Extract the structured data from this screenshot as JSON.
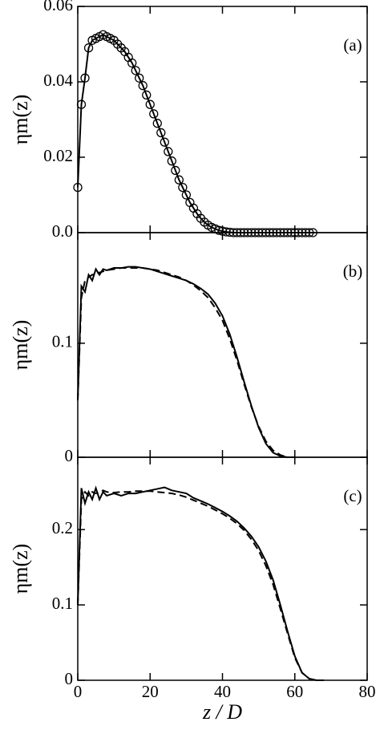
{
  "chart_data": [
    {
      "type": "line",
      "annotation": "(a)",
      "ylabel": "ηm(z)",
      "xlim": [
        0,
        80
      ],
      "ylim": [
        0,
        0.06
      ],
      "yticks": [
        {
          "value": 0,
          "label": "0.0"
        },
        0.02,
        0.04,
        0.06
      ],
      "x": [
        0,
        1,
        2,
        3,
        4,
        5,
        6,
        7,
        8,
        9,
        10,
        11,
        12,
        13,
        14,
        15,
        16,
        17,
        18,
        19,
        20,
        21,
        22,
        23,
        24,
        25,
        26,
        27,
        28,
        29,
        30,
        31,
        32,
        33,
        34,
        35,
        36,
        37,
        38,
        39,
        40,
        41,
        42,
        43,
        44,
        45,
        46,
        47,
        48,
        49,
        50,
        51,
        52,
        53,
        54,
        55,
        56,
        57,
        58,
        59,
        60,
        61,
        62,
        63,
        64,
        65
      ],
      "series": [
        {
          "color": "#000000",
          "markers": true,
          "dash": false,
          "values": [
            0.012,
            0.034,
            0.041,
            0.049,
            0.051,
            0.0515,
            0.052,
            0.0525,
            0.052,
            0.0515,
            0.051,
            0.05,
            0.049,
            0.048,
            0.0465,
            0.045,
            0.043,
            0.041,
            0.039,
            0.0365,
            0.034,
            0.0315,
            0.029,
            0.0265,
            0.024,
            0.0215,
            0.019,
            0.0165,
            0.014,
            0.012,
            0.01,
            0.008,
            0.0065,
            0.005,
            0.0038,
            0.0028,
            0.002,
            0.0014,
            0.001,
            0.0006,
            0.0004,
            0.0002,
            0.0001,
            0,
            0,
            0,
            0,
            0,
            0,
            0,
            0,
            0,
            0,
            0,
            0,
            0,
            0,
            0,
            0,
            0,
            0,
            0,
            0,
            0,
            0,
            0
          ]
        }
      ]
    },
    {
      "type": "line",
      "annotation": "(b)",
      "ylabel": "ηm(z)",
      "xlim": [
        0,
        80
      ],
      "ylim": [
        0,
        0.197
      ],
      "yticks": [
        0,
        0.1
      ],
      "x": [
        0,
        1,
        2,
        3,
        4,
        5,
        6,
        7,
        8,
        10,
        12,
        14,
        16,
        18,
        20,
        22,
        24,
        26,
        28,
        30,
        32,
        34,
        36,
        38,
        40,
        42,
        44,
        46,
        48,
        50,
        52,
        54,
        56,
        58,
        60
      ],
      "series": [
        {
          "color": "#000000",
          "markers": false,
          "dash": false,
          "values": [
            0.05,
            0.15,
            0.145,
            0.16,
            0.155,
            0.165,
            0.16,
            0.165,
            0.164,
            0.166,
            0.166,
            0.167,
            0.167,
            0.166,
            0.165,
            0.163,
            0.161,
            0.159,
            0.157,
            0.155,
            0.152,
            0.148,
            0.143,
            0.135,
            0.124,
            0.108,
            0.088,
            0.066,
            0.045,
            0.026,
            0.012,
            0.004,
            0.001,
            0,
            0
          ]
        },
        {
          "color": "#000000",
          "markers": false,
          "dash": true,
          "values": [
            0.05,
            0.14,
            0.155,
            0.158,
            0.16,
            0.161,
            0.162,
            0.163,
            0.164,
            0.165,
            0.166,
            0.166,
            0.166,
            0.166,
            0.165,
            0.164,
            0.162,
            0.16,
            0.158,
            0.155,
            0.151,
            0.146,
            0.14,
            0.131,
            0.12,
            0.104,
            0.085,
            0.064,
            0.044,
            0.027,
            0.014,
            0.006,
            0.002,
            0,
            0
          ]
        }
      ]
    },
    {
      "type": "line",
      "annotation": "(c)",
      "ylabel": "ηm(z)",
      "xlabel": "z / D",
      "xlim": [
        0,
        80
      ],
      "xticks": [
        0,
        20,
        40,
        60,
        80
      ],
      "ylim": [
        0,
        0.296
      ],
      "yticks": [
        0,
        0.1,
        0.2
      ],
      "x": [
        0,
        1,
        2,
        3,
        4,
        5,
        6,
        7,
        8,
        10,
        12,
        14,
        16,
        18,
        20,
        22,
        24,
        26,
        28,
        30,
        32,
        34,
        36,
        38,
        40,
        42,
        44,
        46,
        48,
        50,
        52,
        54,
        56,
        58,
        60,
        62,
        64,
        66,
        68
      ],
      "series": [
        {
          "color": "#000000",
          "markers": false,
          "dash": false,
          "values": [
            0.1,
            0.255,
            0.235,
            0.25,
            0.24,
            0.255,
            0.24,
            0.25,
            0.245,
            0.248,
            0.245,
            0.248,
            0.248,
            0.25,
            0.252,
            0.254,
            0.256,
            0.252,
            0.25,
            0.248,
            0.242,
            0.238,
            0.234,
            0.229,
            0.224,
            0.218,
            0.211,
            0.202,
            0.191,
            0.177,
            0.158,
            0.133,
            0.1,
            0.065,
            0.032,
            0.01,
            0.002,
            0,
            0
          ]
        },
        {
          "color": "#000000",
          "markers": false,
          "dash": true,
          "values": [
            0.1,
            0.24,
            0.25,
            0.245,
            0.25,
            0.248,
            0.25,
            0.252,
            0.25,
            0.249,
            0.25,
            0.25,
            0.251,
            0.251,
            0.251,
            0.25,
            0.249,
            0.248,
            0.246,
            0.243,
            0.239,
            0.235,
            0.231,
            0.226,
            0.221,
            0.215,
            0.208,
            0.199,
            0.187,
            0.172,
            0.152,
            0.127,
            0.095,
            0.062,
            0.03,
            0.01,
            0.002,
            0,
            0
          ]
        }
      ]
    }
  ]
}
